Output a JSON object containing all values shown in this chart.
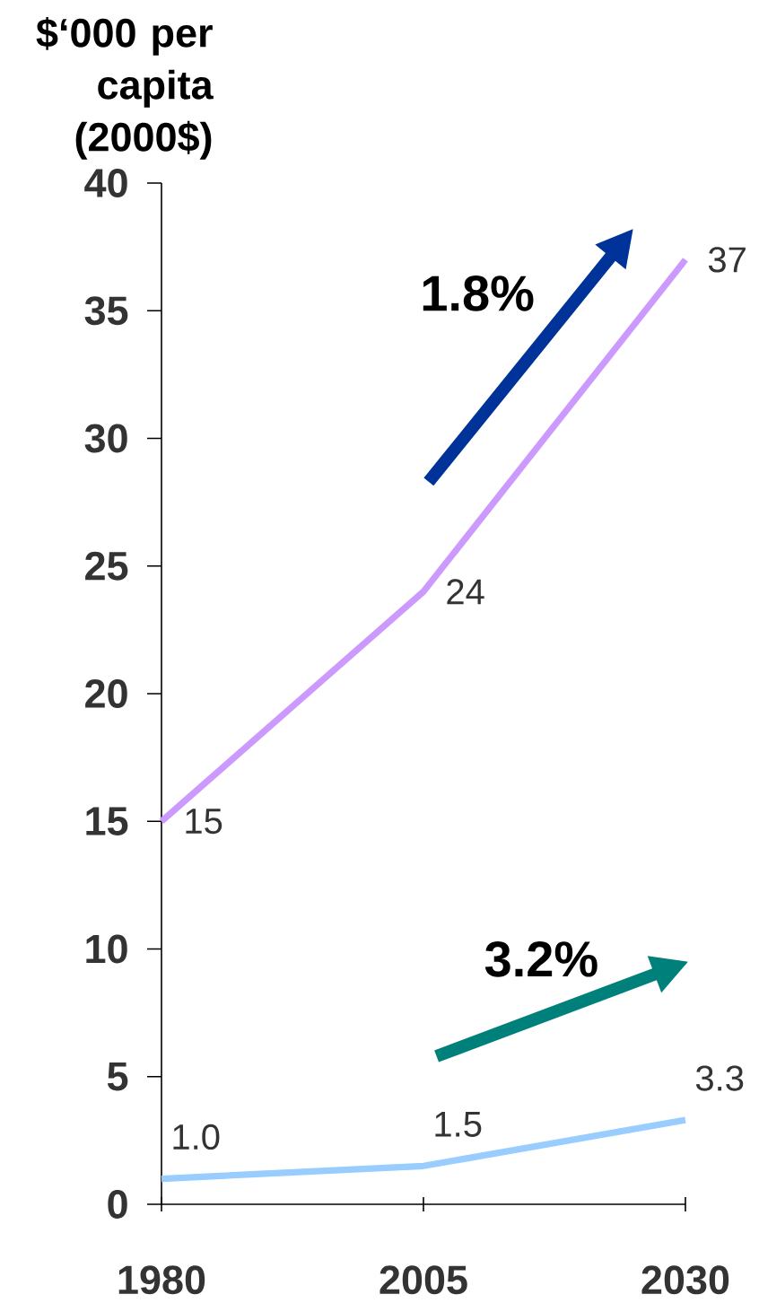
{
  "chart_data": {
    "type": "line",
    "ylabel": "$‘000 per capita (2000$)",
    "annotations": [
      "1.8%",
      "3.2%"
    ],
    "categories": [
      "1980",
      "2005",
      "2030"
    ],
    "series": [
      {
        "color": "#cc99ff",
        "values": [
          15,
          24,
          37
        ],
        "value_labels": [
          "15",
          "24",
          "37"
        ]
      },
      {
        "color": "#99ccff",
        "values": [
          1.0,
          1.5,
          3.3
        ],
        "value_labels": [
          "1.0",
          "1.5",
          "3.3"
        ]
      }
    ],
    "ylim": [
      0,
      40
    ],
    "yticks": [
      0,
      5,
      10,
      15,
      20,
      25,
      30,
      35,
      40
    ],
    "marker": "none",
    "line_style": "solid"
  }
}
